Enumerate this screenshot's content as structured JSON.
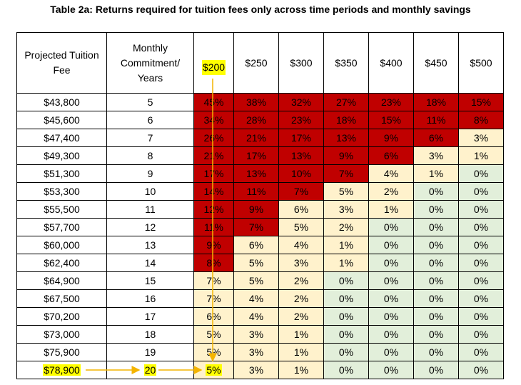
{
  "title": "Table 2a: Returns required for tuition fees only across time periods and monthly savings",
  "headers": {
    "fee": "Projected Tuition Fee",
    "commitment": "Monthly Commitment/ Years",
    "cols": [
      "$200",
      "$250",
      "$300",
      "$350",
      "$400",
      "$450",
      "$500"
    ]
  },
  "rows": [
    {
      "fee": "$43,800",
      "years": "5",
      "values": [
        "45%",
        "38%",
        "32%",
        "27%",
        "23%",
        "18%",
        "15%"
      ],
      "colors": [
        "red",
        "red",
        "red",
        "red",
        "red",
        "red",
        "red"
      ]
    },
    {
      "fee": "$45,600",
      "years": "6",
      "values": [
        "34%",
        "28%",
        "23%",
        "18%",
        "15%",
        "11%",
        "8%"
      ],
      "colors": [
        "red",
        "red",
        "red",
        "red",
        "red",
        "red",
        "red"
      ]
    },
    {
      "fee": "$47,400",
      "years": "7",
      "values": [
        "26%",
        "21%",
        "17%",
        "13%",
        "9%",
        "6%",
        "3%"
      ],
      "colors": [
        "red",
        "red",
        "red",
        "red",
        "red",
        "red",
        "cream"
      ]
    },
    {
      "fee": "$49,300",
      "years": "8",
      "values": [
        "21%",
        "17%",
        "13%",
        "9%",
        "6%",
        "3%",
        "1%"
      ],
      "colors": [
        "red",
        "red",
        "red",
        "red",
        "red",
        "cream",
        "cream"
      ]
    },
    {
      "fee": "$51,300",
      "years": "9",
      "values": [
        "17%",
        "13%",
        "10%",
        "7%",
        "4%",
        "1%",
        "0%"
      ],
      "colors": [
        "red",
        "red",
        "red",
        "red",
        "cream",
        "cream",
        "green"
      ]
    },
    {
      "fee": "$53,300",
      "years": "10",
      "values": [
        "14%",
        "11%",
        "7%",
        "5%",
        "2%",
        "0%",
        "0%"
      ],
      "colors": [
        "red",
        "red",
        "red",
        "cream",
        "cream",
        "green",
        "green"
      ]
    },
    {
      "fee": "$55,500",
      "years": "11",
      "values": [
        "12%",
        "9%",
        "6%",
        "3%",
        "1%",
        "0%",
        "0%"
      ],
      "colors": [
        "red",
        "red",
        "cream",
        "cream",
        "cream",
        "green",
        "green"
      ]
    },
    {
      "fee": "$57,700",
      "years": "12",
      "values": [
        "11%",
        "7%",
        "5%",
        "2%",
        "0%",
        "0%",
        "0%"
      ],
      "colors": [
        "red",
        "red",
        "cream",
        "cream",
        "green",
        "green",
        "green"
      ]
    },
    {
      "fee": "$60,000",
      "years": "13",
      "values": [
        "9%",
        "6%",
        "4%",
        "1%",
        "0%",
        "0%",
        "0%"
      ],
      "colors": [
        "red",
        "cream",
        "cream",
        "cream",
        "green",
        "green",
        "green"
      ]
    },
    {
      "fee": "$62,400",
      "years": "14",
      "values": [
        "8%",
        "5%",
        "3%",
        "1%",
        "0%",
        "0%",
        "0%"
      ],
      "colors": [
        "red",
        "cream",
        "cream",
        "cream",
        "green",
        "green",
        "green"
      ]
    },
    {
      "fee": "$64,900",
      "years": "15",
      "values": [
        "7%",
        "5%",
        "2%",
        "0%",
        "0%",
        "0%",
        "0%"
      ],
      "colors": [
        "cream",
        "cream",
        "cream",
        "green",
        "green",
        "green",
        "green"
      ]
    },
    {
      "fee": "$67,500",
      "years": "16",
      "values": [
        "7%",
        "4%",
        "2%",
        "0%",
        "0%",
        "0%",
        "0%"
      ],
      "colors": [
        "cream",
        "cream",
        "cream",
        "green",
        "green",
        "green",
        "green"
      ]
    },
    {
      "fee": "$70,200",
      "years": "17",
      "values": [
        "6%",
        "4%",
        "2%",
        "0%",
        "0%",
        "0%",
        "0%"
      ],
      "colors": [
        "cream",
        "cream",
        "cream",
        "green",
        "green",
        "green",
        "green"
      ]
    },
    {
      "fee": "$73,000",
      "years": "18",
      "values": [
        "5%",
        "3%",
        "1%",
        "0%",
        "0%",
        "0%",
        "0%"
      ],
      "colors": [
        "cream",
        "cream",
        "cream",
        "green",
        "green",
        "green",
        "green"
      ]
    },
    {
      "fee": "$75,900",
      "years": "19",
      "values": [
        "5%",
        "3%",
        "1%",
        "0%",
        "0%",
        "0%",
        "0%"
      ],
      "colors": [
        "cream",
        "cream",
        "cream",
        "green",
        "green",
        "green",
        "green"
      ]
    },
    {
      "fee": "$78,900",
      "years": "20",
      "values": [
        "5%",
        "3%",
        "1%",
        "0%",
        "0%",
        "0%",
        "0%"
      ],
      "colors": [
        "cream",
        "cream",
        "cream",
        "green",
        "green",
        "green",
        "green"
      ]
    }
  ],
  "highlight": {
    "row_index": 15,
    "column": "$200",
    "color": "#ffff00"
  },
  "colors": {
    "red": "#c00000",
    "cream": "#fff2cc",
    "green": "#e2efda",
    "arrow": "#f4b400"
  }
}
